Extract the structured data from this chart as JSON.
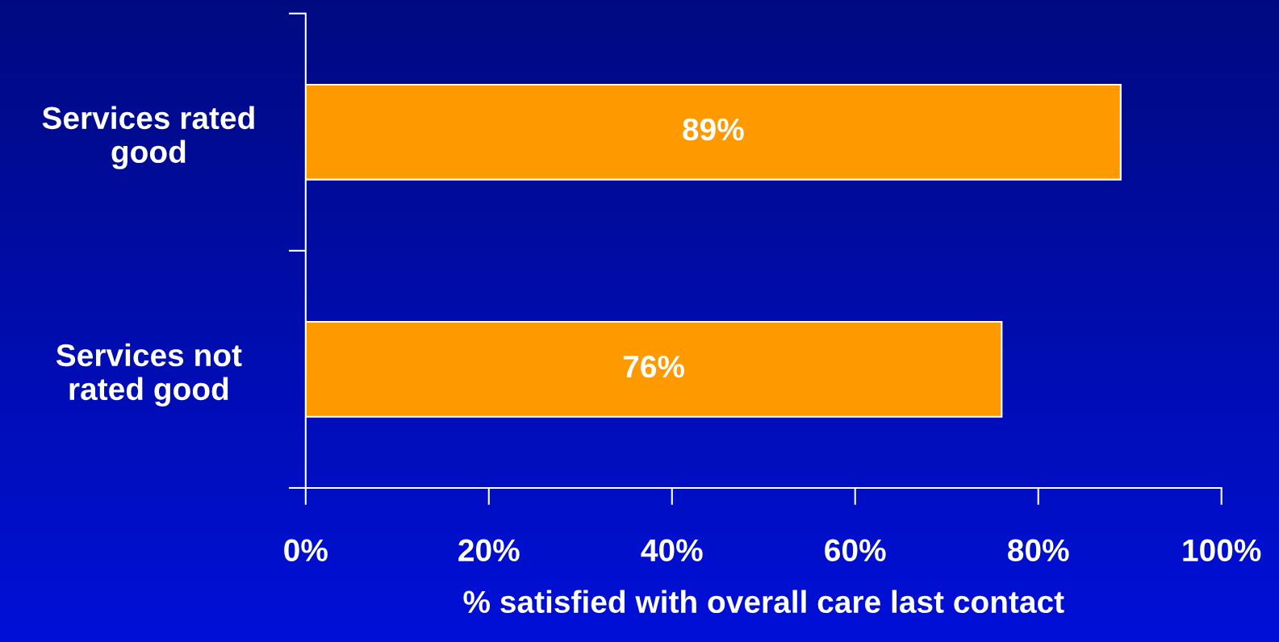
{
  "chart_data": {
    "type": "bar",
    "orientation": "horizontal",
    "categories": [
      "Services rated\ngood",
      "Services not\nrated good"
    ],
    "values": [
      89,
      76
    ],
    "color": "#ff9900",
    "data_labels": true,
    "value_labels": [
      "89%",
      "76%"
    ],
    "xlabel": "% satisfied with overall care last contact",
    "xlim": [
      0,
      100
    ],
    "xticks": [
      {
        "value": 0,
        "label": "0%"
      },
      {
        "value": 20,
        "label": "20%"
      },
      {
        "value": 40,
        "label": "40%"
      },
      {
        "value": 60,
        "label": "60%"
      },
      {
        "value": 80,
        "label": "80%"
      },
      {
        "value": 100,
        "label": "100%"
      }
    ],
    "grid": false,
    "legend": false
  }
}
